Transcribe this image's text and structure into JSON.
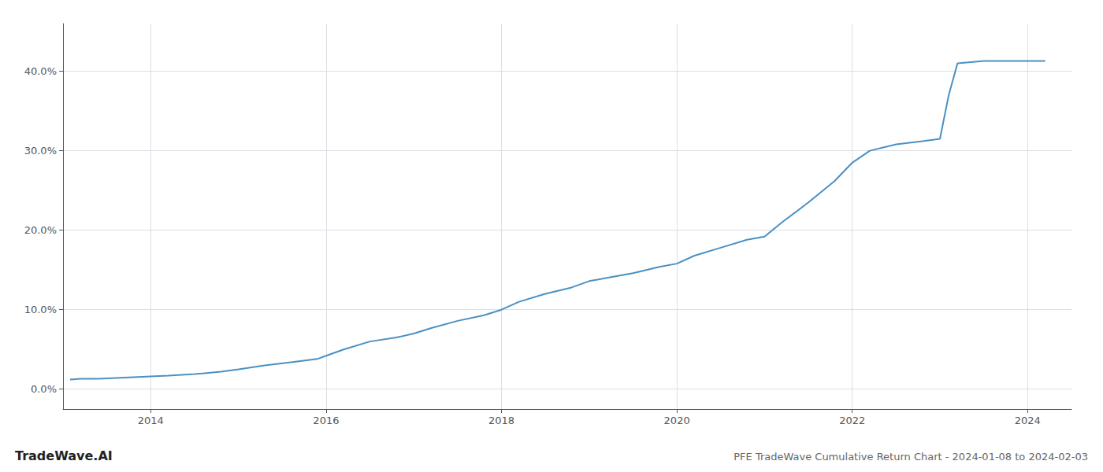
{
  "chart_data": {
    "type": "line",
    "title": "PFE TradeWave Cumulative Return Chart - 2024-01-08 to 2024-02-03",
    "annotations": [
      "TradeWave.AI"
    ],
    "color": "#4a90c4",
    "x": [
      2013.08,
      2013.2,
      2013.4,
      2013.6,
      2013.8,
      2014.0,
      2014.2,
      2014.5,
      2014.8,
      2015.0,
      2015.3,
      2015.6,
      2015.9,
      2016.0,
      2016.2,
      2016.5,
      2016.8,
      2017.0,
      2017.2,
      2017.5,
      2017.8,
      2018.0,
      2018.2,
      2018.5,
      2018.8,
      2019.0,
      2019.2,
      2019.5,
      2019.8,
      2020.0,
      2020.2,
      2020.5,
      2020.8,
      2021.0,
      2021.2,
      2021.5,
      2021.8,
      2022.0,
      2022.2,
      2022.5,
      2022.8,
      2023.0,
      2023.1,
      2023.2,
      2023.5,
      2023.8,
      2024.0,
      2024.2
    ],
    "values": [
      0.012,
      0.013,
      0.013,
      0.014,
      0.015,
      0.016,
      0.017,
      0.019,
      0.022,
      0.025,
      0.03,
      0.034,
      0.038,
      0.042,
      0.05,
      0.06,
      0.065,
      0.07,
      0.077,
      0.086,
      0.093,
      0.1,
      0.11,
      0.12,
      0.128,
      0.136,
      0.14,
      0.146,
      0.154,
      0.158,
      0.168,
      0.178,
      0.188,
      0.192,
      0.21,
      0.235,
      0.262,
      0.285,
      0.3,
      0.308,
      0.312,
      0.315,
      0.37,
      0.41,
      0.413,
      0.413,
      0.413,
      0.413
    ],
    "xlim": [
      2013.0,
      2024.5
    ],
    "ylim": [
      -0.025,
      0.46
    ],
    "xticks": [
      2014,
      2016,
      2018,
      2020,
      2022,
      2024
    ],
    "yticks": [
      {
        "value": 0.0,
        "label": "0.0%"
      },
      {
        "value": 0.1,
        "label": "10.0%"
      },
      {
        "value": 0.2,
        "label": "20.0%"
      },
      {
        "value": 0.3,
        "label": "30.0%"
      },
      {
        "value": 0.4,
        "label": "40.0%"
      }
    ],
    "grid": true
  }
}
